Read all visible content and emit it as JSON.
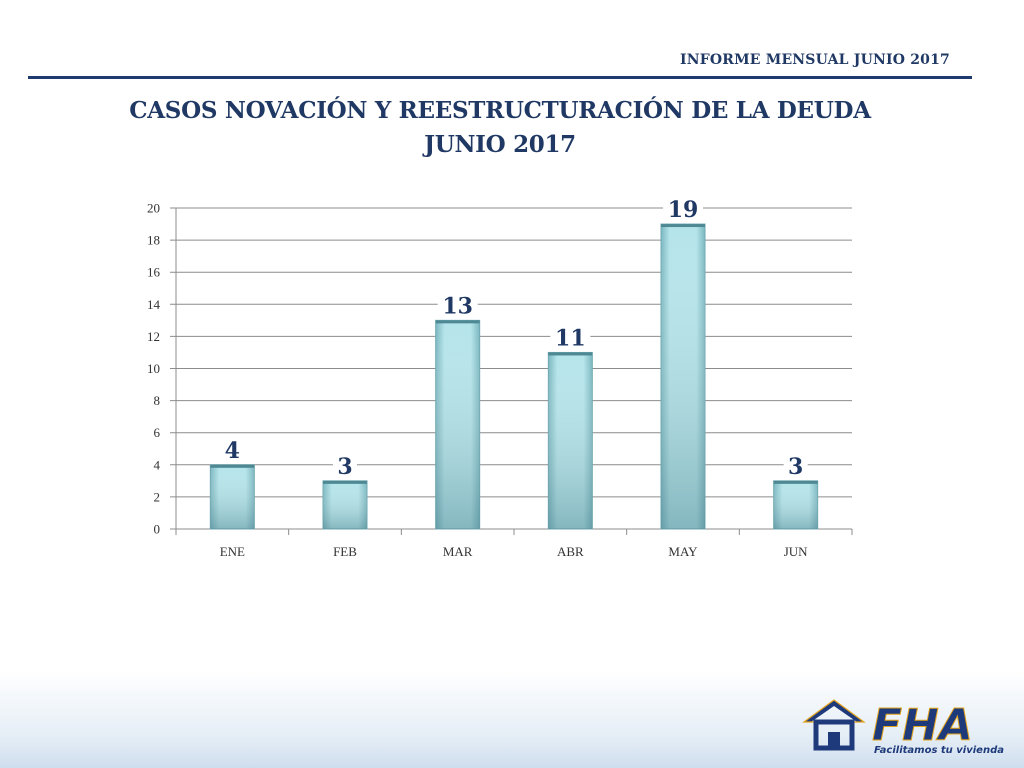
{
  "header": {
    "report": "INFORME MENSUAL JUNIO 2017"
  },
  "title": {
    "line1": "CASOS NOVACIÓN Y REESTRUCTURACIÓN DE LA DEUDA",
    "line2": "JUNIO 2017"
  },
  "chart_data": {
    "type": "bar",
    "categories": [
      "ENE",
      "FEB",
      "MAR",
      "ABR",
      "MAY",
      "JUN"
    ],
    "values": [
      4,
      3,
      13,
      11,
      19,
      3
    ],
    "title": "CASOS NOVACIÓN Y REESTRUCTURACIÓN DE LA DEUDA JUNIO 2017",
    "xlabel": "",
    "ylabel": "",
    "ylim": [
      0,
      20
    ],
    "yticks": [
      0,
      2,
      4,
      6,
      8,
      10,
      12,
      14,
      16,
      18,
      20
    ],
    "grid": true,
    "data_labels": true,
    "bar_color": "#a9dbe3"
  },
  "logo": {
    "text": "FHA",
    "tagline": "Facilitamos tu vivienda",
    "colors": {
      "primary": "#1f3a7a",
      "accent": "#e3a41b"
    }
  }
}
